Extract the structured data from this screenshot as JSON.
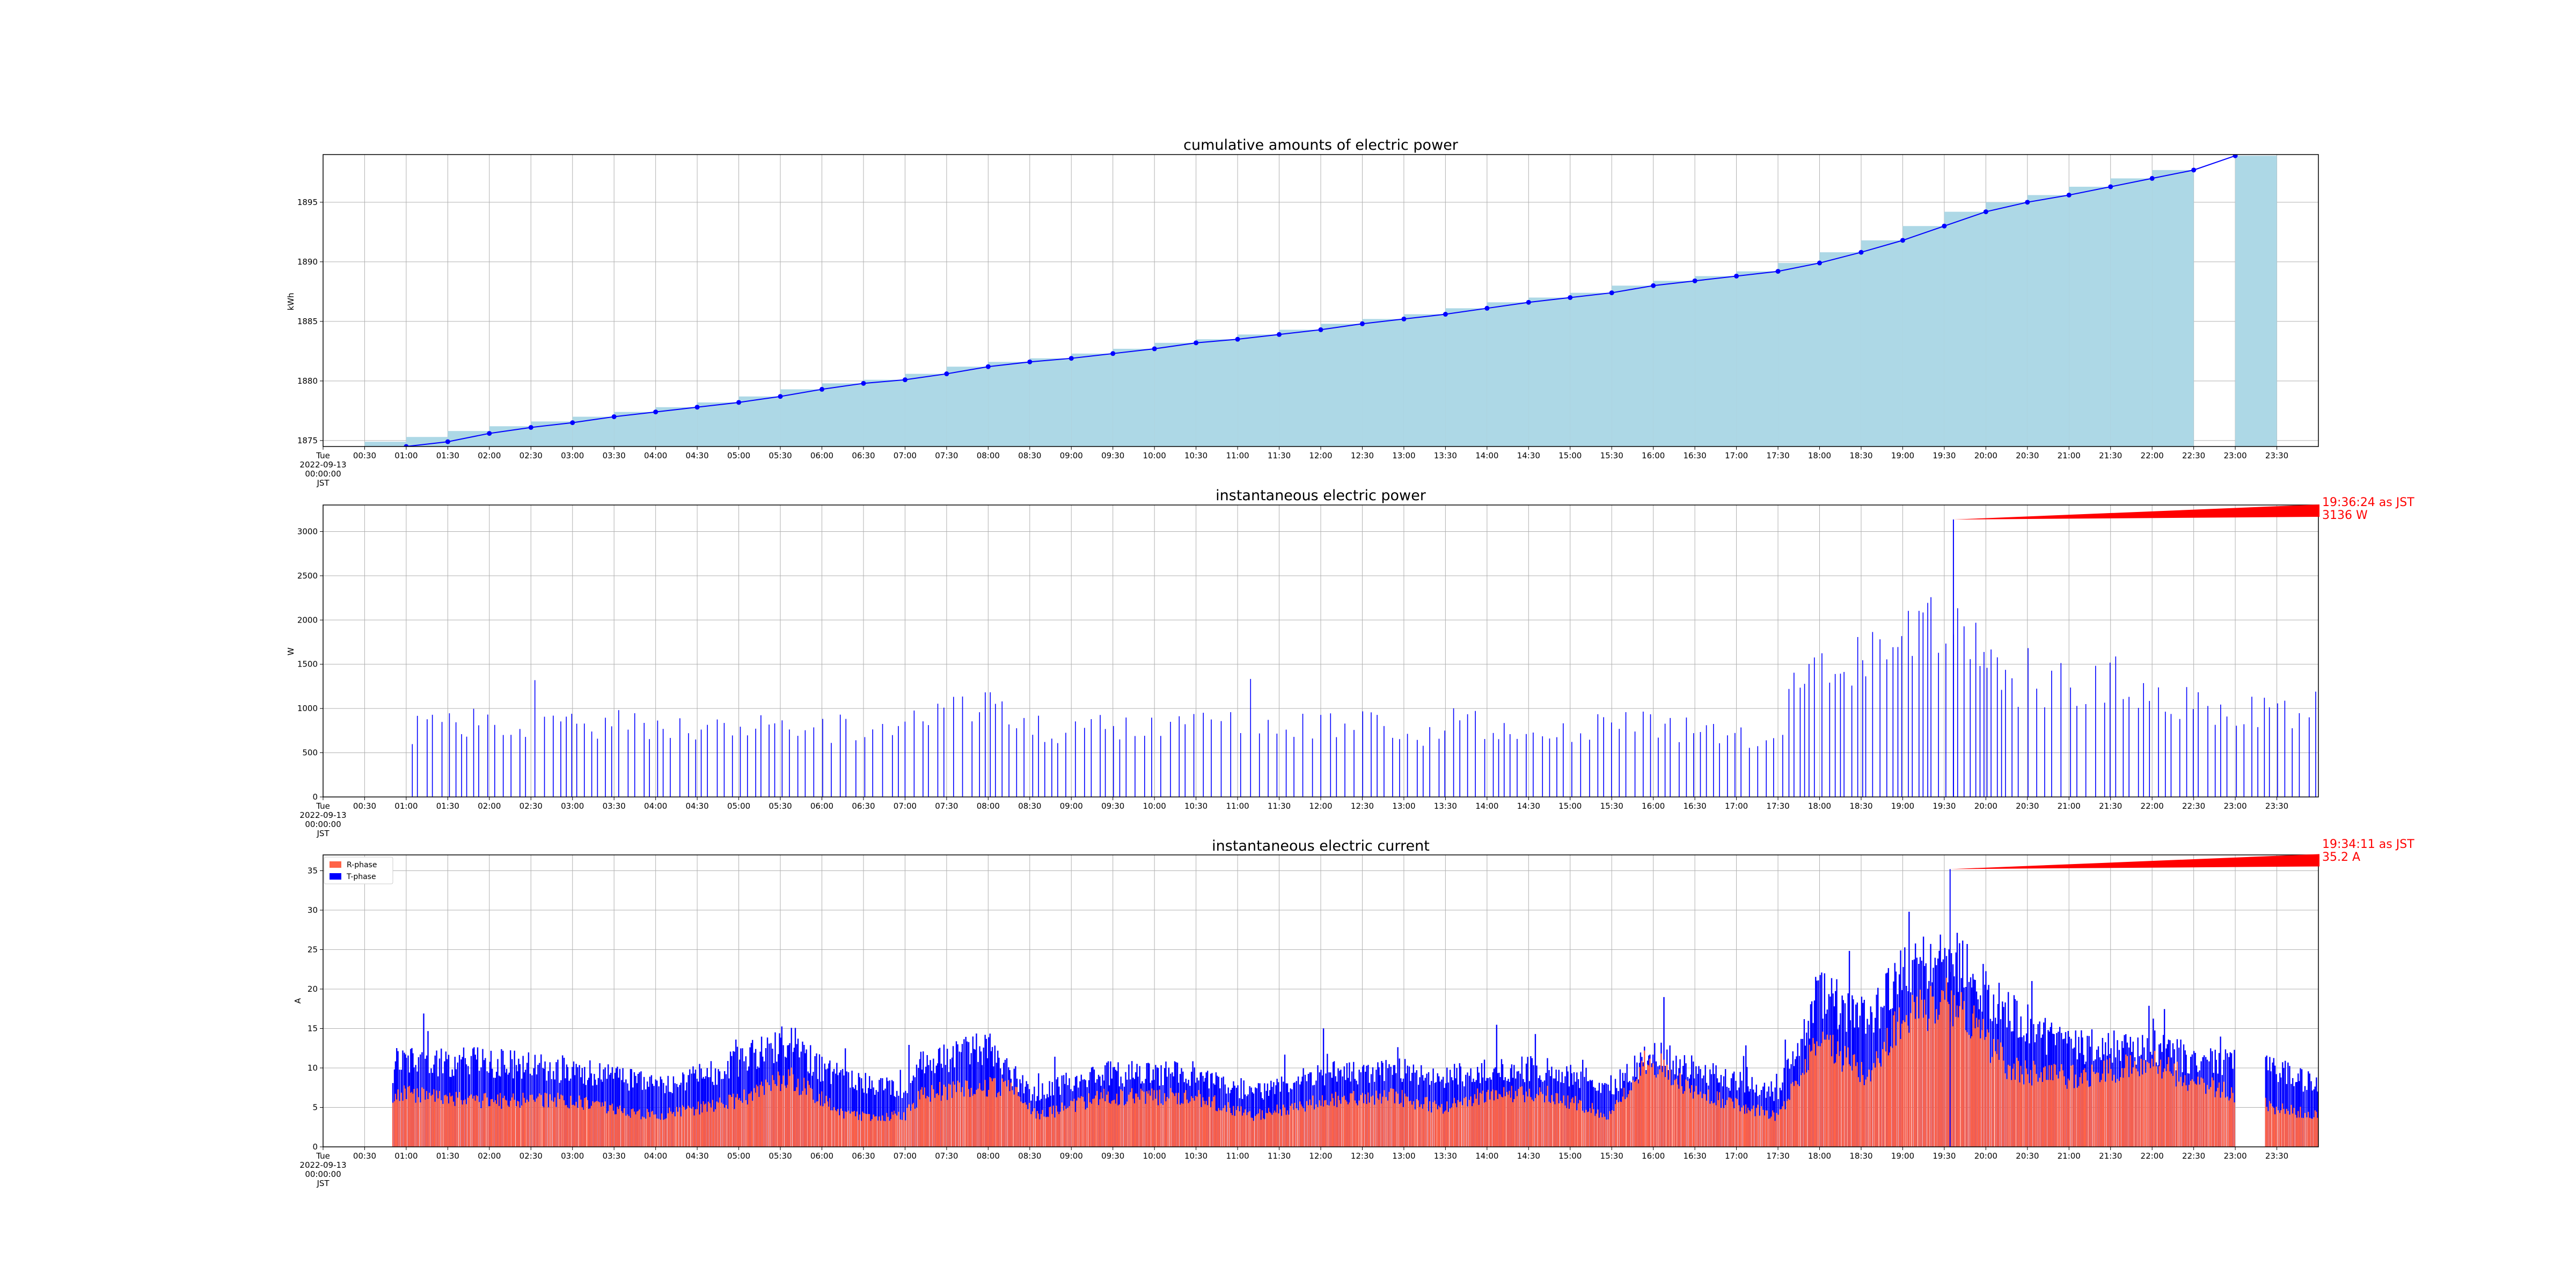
{
  "chart_data": [
    {
      "id": "cumulative",
      "type": "bar",
      "title": "cumulative amounts of electric power",
      "xlabel": "",
      "ylabel": "kWh",
      "xlim": [
        0,
        24
      ],
      "ylim": [
        1874.5,
        1899
      ],
      "yticks": [
        1875,
        1880,
        1885,
        1890,
        1895
      ],
      "grid": true,
      "bar_color": "#add8e6",
      "line_color": "#0000ff",
      "bars": {
        "x": [
          1.0,
          1.5,
          2.0,
          2.5,
          3.0,
          3.5,
          4.0,
          4.5,
          5.0,
          5.5,
          6.0,
          6.5,
          7.0,
          7.5,
          8.0,
          8.5,
          9.0,
          9.5,
          10.0,
          10.5,
          11.0,
          11.5,
          12.0,
          12.5,
          13.0,
          13.5,
          14.0,
          14.5,
          15.0,
          15.5,
          16.0,
          16.5,
          17.0,
          17.5,
          18.0,
          18.5,
          19.0,
          19.5,
          20.0,
          20.5,
          21.0,
          21.5,
          22.0,
          22.5,
          23.5
        ],
        "values": [
          1874.9,
          1875.3,
          1875.8,
          1876.2,
          1876.6,
          1877.0,
          1877.4,
          1877.8,
          1878.2,
          1878.7,
          1879.3,
          1879.8,
          1880.1,
          1880.6,
          1881.2,
          1881.6,
          1881.9,
          1882.3,
          1882.7,
          1883.2,
          1883.5,
          1883.9,
          1884.3,
          1884.8,
          1885.2,
          1885.6,
          1886.1,
          1886.6,
          1887.0,
          1887.4,
          1888.0,
          1888.4,
          1888.8,
          1889.2,
          1889.9,
          1890.8,
          1891.8,
          1893.0,
          1894.2,
          1895.0,
          1895.6,
          1896.3,
          1897.0,
          1897.7,
          1898.9
        ]
      },
      "series": [
        {
          "x": [
            1.0,
            1.5,
            2.0,
            2.5,
            3.0,
            3.5,
            4.0,
            4.5,
            5.0,
            5.5,
            6.0,
            6.5,
            7.0,
            7.5,
            8.0,
            8.5,
            9.0,
            9.5,
            10.0,
            10.5,
            11.0,
            11.5,
            12.0,
            12.5,
            13.0,
            13.5,
            14.0,
            14.5,
            15.0,
            15.5,
            16.0,
            16.5,
            17.0,
            17.5,
            18.0,
            18.5,
            19.0,
            19.5,
            20.0,
            20.5,
            21.0,
            21.5,
            22.0,
            22.5,
            23.0
          ],
          "values": [
            1874.5,
            1874.9,
            1875.6,
            1876.1,
            1876.5,
            1877.0,
            1877.4,
            1877.8,
            1878.2,
            1878.7,
            1879.3,
            1879.8,
            1880.1,
            1880.6,
            1881.2,
            1881.6,
            1881.9,
            1882.3,
            1882.7,
            1883.2,
            1883.5,
            1883.9,
            1884.3,
            1884.8,
            1885.2,
            1885.6,
            1886.1,
            1886.6,
            1887.0,
            1887.4,
            1888.0,
            1888.4,
            1888.8,
            1889.2,
            1889.9,
            1890.8,
            1891.8,
            1893.0,
            1894.2,
            1895.0,
            1895.6,
            1896.3,
            1897.0,
            1897.7,
            1898.9
          ]
        }
      ]
    },
    {
      "id": "power",
      "type": "bar",
      "title": "instantaneous electric power",
      "xlabel": "",
      "ylabel": "W",
      "xlim": [
        0,
        24
      ],
      "ylim": [
        0,
        3300
      ],
      "yticks": [
        0,
        500,
        1000,
        1500,
        2000,
        2500,
        3000
      ],
      "grid": true,
      "color": "#0000ff",
      "approx_values": true,
      "annotation": {
        "x": 19.61,
        "y": 3136,
        "line1": "19:36:24 as JST",
        "line2": "3136 W"
      }
    },
    {
      "id": "current",
      "type": "area",
      "title": "instantaneous electric current",
      "xlabel": "",
      "ylabel": "A",
      "xlim": [
        0,
        24
      ],
      "ylim": [
        0,
        37
      ],
      "yticks": [
        0,
        5,
        10,
        15,
        20,
        25,
        30,
        35
      ],
      "grid": true,
      "legend_position": "top-left",
      "approx_values": true,
      "series": [
        {
          "name": "R-phase",
          "color": "#ff6347"
        },
        {
          "name": "T-phase",
          "color": "#0000ff"
        }
      ],
      "annotation": {
        "x": 19.57,
        "y": 35.2,
        "line1": "19:34:11 as JST",
        "line2": "35.2 A"
      }
    }
  ],
  "x_axis": {
    "first_tick": [
      "Tue",
      "2022-09-13",
      "00:00:00",
      "JST"
    ],
    "tick_labels": [
      "00:30",
      "01:00",
      "01:30",
      "02:00",
      "02:30",
      "03:00",
      "03:30",
      "04:00",
      "04:30",
      "05:00",
      "05:30",
      "06:00",
      "06:30",
      "07:00",
      "07:30",
      "08:00",
      "08:30",
      "09:00",
      "09:30",
      "10:00",
      "10:30",
      "11:00",
      "11:30",
      "12:00",
      "12:30",
      "13:00",
      "13:30",
      "14:00",
      "14:30",
      "15:00",
      "15:30",
      "16:00",
      "16:30",
      "17:00",
      "17:30",
      "18:00",
      "18:30",
      "19:00",
      "19:30",
      "20:00",
      "20:30",
      "21:00",
      "21:30",
      "22:00",
      "22:30",
      "23:00",
      "23:30"
    ]
  }
}
